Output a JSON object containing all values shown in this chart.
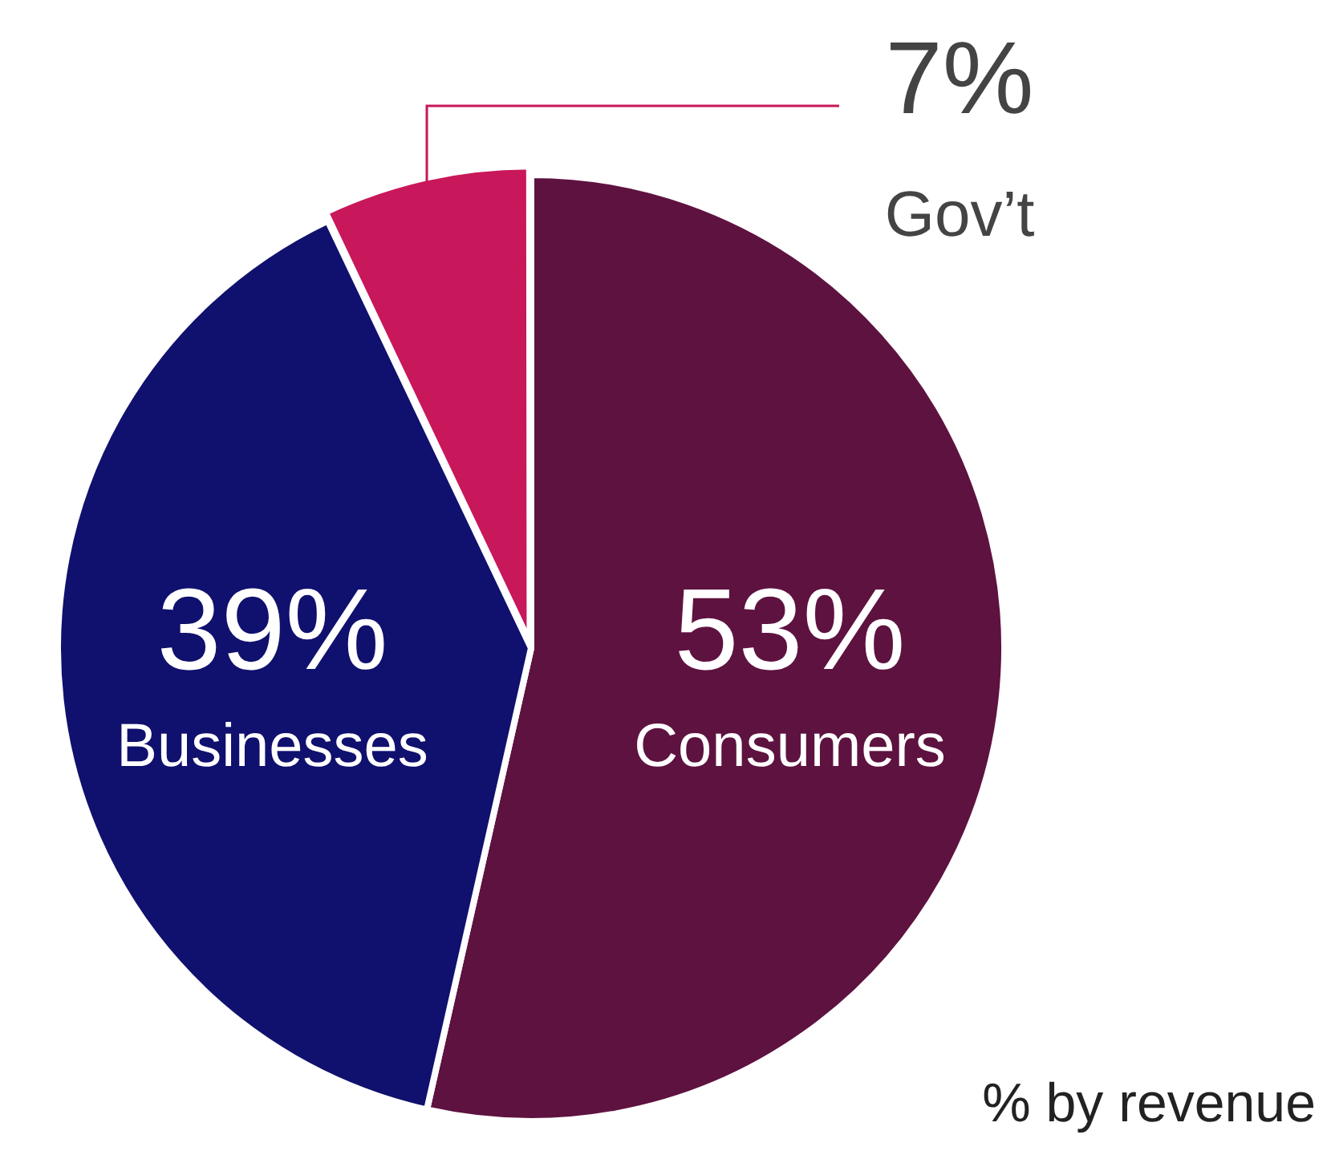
{
  "chart_data": {
    "type": "pie",
    "categories": [
      "Consumers",
      "Businesses",
      "Gov’t"
    ],
    "values": [
      53,
      39,
      7
    ],
    "colors": [
      "#5e1240",
      "#10106e",
      "#c8175a"
    ],
    "value_labels": [
      "53%",
      "39%",
      "7%"
    ],
    "annotations": [
      "% by revenue"
    ],
    "legend": false
  }
}
